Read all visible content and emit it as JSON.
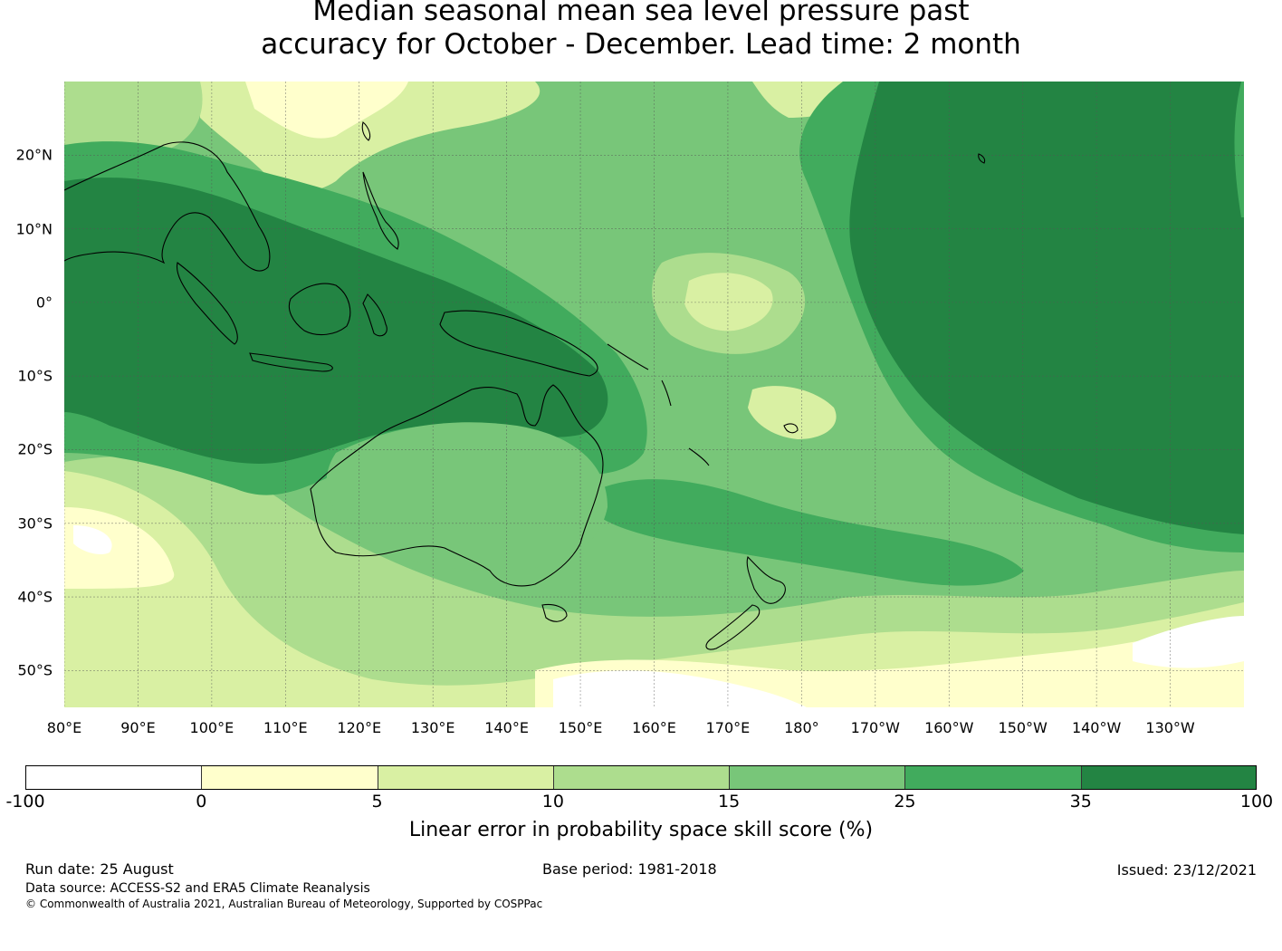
{
  "title": {
    "line1": "Median seasonal mean sea level pressure past",
    "line2": "accuracy for October - December. Lead time: 2 month"
  },
  "map": {
    "lat_labels": [
      {
        "lat": 20,
        "text": "20°N"
      },
      {
        "lat": 10,
        "text": "10°N"
      },
      {
        "lat": 0,
        "text": "0°"
      },
      {
        "lat": -10,
        "text": "10°S"
      },
      {
        "lat": -20,
        "text": "20°S"
      },
      {
        "lat": -30,
        "text": "30°S"
      },
      {
        "lat": -40,
        "text": "40°S"
      },
      {
        "lat": -50,
        "text": "50°S"
      }
    ],
    "lon_labels": [
      {
        "lon": 80,
        "text": "80°E"
      },
      {
        "lon": 90,
        "text": "90°E"
      },
      {
        "lon": 100,
        "text": "100°E"
      },
      {
        "lon": 110,
        "text": "110°E"
      },
      {
        "lon": 120,
        "text": "120°E"
      },
      {
        "lon": 130,
        "text": "130°E"
      },
      {
        "lon": 140,
        "text": "140°E"
      },
      {
        "lon": 150,
        "text": "150°E"
      },
      {
        "lon": 160,
        "text": "160°E"
      },
      {
        "lon": 170,
        "text": "170°E"
      },
      {
        "lon": 180,
        "text": "180°"
      },
      {
        "lon": 190,
        "text": "170°W"
      },
      {
        "lon": 200,
        "text": "160°W"
      },
      {
        "lon": 210,
        "text": "150°W"
      },
      {
        "lon": 220,
        "text": "140°W"
      },
      {
        "lon": 230,
        "text": "130°W"
      }
    ],
    "lon_range": [
      80,
      240
    ],
    "lat_range": [
      -55,
      30
    ],
    "colors": {
      "c0": "#ffffff",
      "c1": "#ffffcc",
      "c2": "#d9f0a3",
      "c3": "#addd8e",
      "c4": "#78c679",
      "c5": "#41ab5d",
      "c6": "#238443"
    }
  },
  "colorbar": {
    "segments": [
      {
        "from": "-100",
        "to": "0",
        "color": "#ffffff"
      },
      {
        "from": "0",
        "to": "5",
        "color": "#ffffcc"
      },
      {
        "from": "5",
        "to": "10",
        "color": "#d9f0a3"
      },
      {
        "from": "10",
        "to": "15",
        "color": "#addd8e"
      },
      {
        "from": "15",
        "to": "25",
        "color": "#78c679"
      },
      {
        "from": "25",
        "to": "35",
        "color": "#41ab5d"
      },
      {
        "from": "35",
        "to": "100",
        "color": "#238443"
      }
    ],
    "ticks": [
      "-100",
      "0",
      "5",
      "10",
      "15",
      "25",
      "35",
      "100"
    ],
    "label": "Linear error in probability space skill score (%)"
  },
  "footer": {
    "run_date": "Run date: 25 August",
    "base_period": "Base period: 1981-2018",
    "issued": "Issued: 23/12/2021",
    "data_source": "Data source: ACCESS-S2 and ERA5 Climate Reanalysis",
    "copyright": "© Commonwealth of Australia 2021, Australian Bureau of Meteorology, Supported by COSPPac"
  }
}
